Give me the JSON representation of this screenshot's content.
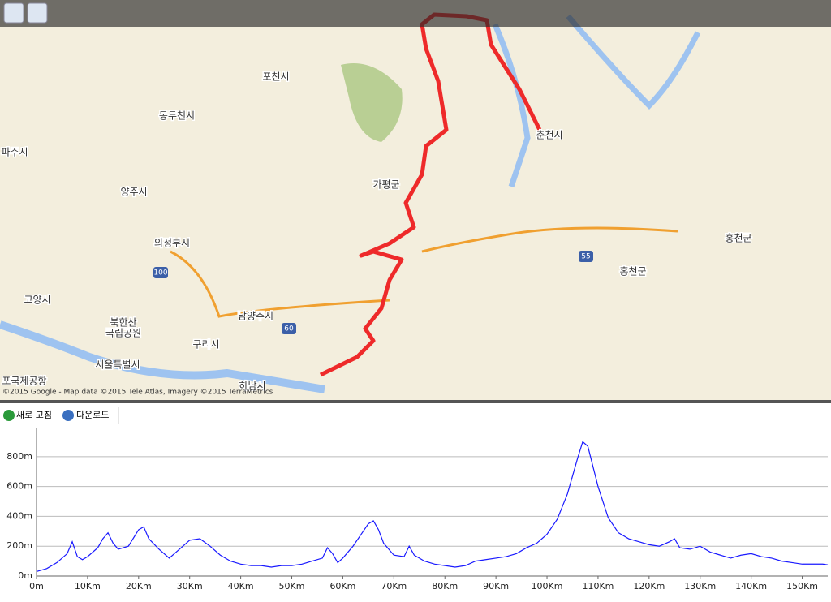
{
  "map": {
    "labels": [
      "포천시",
      "동두천시",
      "파주시",
      "양주시",
      "가평군",
      "춘천시",
      "의정부시",
      "홍천군",
      "홍천군",
      "고양시",
      "남양주시",
      "북한산",
      "국립공원",
      "서울특별시",
      "구리시",
      "하남시",
      "포국제공항"
    ],
    "shields": [
      "100",
      "60",
      "55"
    ],
    "attribution": "©2015 Google - Map data ©2015 Tele Atlas, Imagery ©2015 TerraMetrics"
  },
  "toolbar": {
    "refresh": "새로 고침",
    "download": "다운로드"
  },
  "chart_data": {
    "type": "area",
    "color": "#1a1aff",
    "grid": true,
    "x": [
      0,
      2,
      4,
      6,
      7,
      8,
      9,
      10,
      12,
      13,
      14,
      15,
      16,
      18,
      20,
      21,
      22,
      24,
      26,
      28,
      30,
      32,
      34,
      36,
      38,
      40,
      42,
      44,
      46,
      48,
      50,
      52,
      54,
      56,
      57,
      58,
      59,
      60,
      62,
      64,
      65,
      66,
      67,
      68,
      70,
      72,
      73,
      74,
      76,
      78,
      80,
      82,
      84,
      86,
      88,
      90,
      92,
      94,
      96,
      98,
      100,
      102,
      104,
      106,
      107,
      108,
      110,
      112,
      114,
      116,
      118,
      120,
      122,
      124,
      125,
      126,
      128,
      130,
      132,
      134,
      136,
      138,
      140,
      142,
      144,
      146,
      148,
      150,
      152,
      154,
      155
    ],
    "values": [
      30,
      50,
      90,
      150,
      230,
      130,
      110,
      130,
      190,
      250,
      290,
      220,
      180,
      200,
      310,
      330,
      250,
      180,
      120,
      180,
      240,
      250,
      200,
      140,
      100,
      80,
      70,
      70,
      60,
      70,
      70,
      80,
      100,
      120,
      190,
      150,
      90,
      120,
      200,
      300,
      350,
      370,
      310,
      220,
      140,
      130,
      200,
      140,
      100,
      80,
      70,
      60,
      70,
      100,
      110,
      120,
      130,
      150,
      190,
      220,
      280,
      380,
      550,
      790,
      900,
      870,
      600,
      390,
      290,
      250,
      230,
      210,
      200,
      230,
      250,
      190,
      180,
      200,
      160,
      140,
      120,
      140,
      150,
      130,
      120,
      100,
      90,
      80,
      80,
      80,
      75
    ],
    "xlim": [
      0,
      155
    ],
    "ylim": [
      0,
      995
    ],
    "xticks": [
      {
        "value": 0,
        "label": "0m"
      },
      {
        "value": 10,
        "label": "10Km"
      },
      {
        "value": 20,
        "label": "20Km"
      },
      {
        "value": 30,
        "label": "30Km"
      },
      {
        "value": 40,
        "label": "40Km"
      },
      {
        "value": 50,
        "label": "50Km"
      },
      {
        "value": 60,
        "label": "60Km"
      },
      {
        "value": 70,
        "label": "70Km"
      },
      {
        "value": 80,
        "label": "80Km"
      },
      {
        "value": 90,
        "label": "90Km"
      },
      {
        "value": 100,
        "label": "100Km"
      },
      {
        "value": 110,
        "label": "110Km"
      },
      {
        "value": 120,
        "label": "120Km"
      },
      {
        "value": 130,
        "label": "130Km"
      },
      {
        "value": 140,
        "label": "140Km"
      },
      {
        "value": 150,
        "label": "150Km"
      }
    ],
    "yticks": [
      {
        "value": 0,
        "label": "0m"
      },
      {
        "value": 200,
        "label": "200m"
      },
      {
        "value": 400,
        "label": "400m"
      },
      {
        "value": 600,
        "label": "600m"
      },
      {
        "value": 800,
        "label": "800m"
      }
    ]
  }
}
